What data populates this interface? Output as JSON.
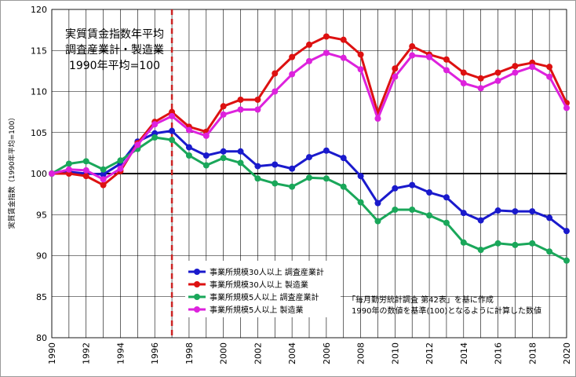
{
  "chart_data": {
    "type": "line",
    "title": [
      "実質賃金指数年平均",
      "調査産業計・製造業",
      "1990年平均=100"
    ],
    "ylabel": "実質賃金指数（1990年平均=100）",
    "xlabel": "",
    "x": [
      1990,
      1991,
      1992,
      1993,
      1994,
      1995,
      1996,
      1997,
      1998,
      1999,
      2000,
      2001,
      2002,
      2003,
      2004,
      2005,
      2006,
      2007,
      2008,
      2009,
      2010,
      2011,
      2012,
      2013,
      2014,
      2015,
      2016,
      2017,
      2018,
      2019,
      2020
    ],
    "xticks": [
      "1990",
      "1992",
      "1994",
      "1996",
      "1998",
      "2000",
      "2002",
      "2004",
      "2006",
      "2008",
      "2010",
      "2012",
      "2014",
      "2016",
      "2018",
      "2020"
    ],
    "ylim": [
      80,
      120
    ],
    "yticks": [
      "80",
      "85",
      "90",
      "95",
      "100",
      "105",
      "110",
      "115",
      "120"
    ],
    "grid": true,
    "reference_line": 100,
    "marker_year": 1997,
    "series": [
      {
        "name": "事業所規模30人以上 調査産業計",
        "color": "#1a1acc",
        "values": [
          100.0,
          100.2,
          100.0,
          99.9,
          101.2,
          103.9,
          104.9,
          105.2,
          103.2,
          102.2,
          102.7,
          102.7,
          100.9,
          101.1,
          100.6,
          102.0,
          102.8,
          101.9,
          99.7,
          96.4,
          98.2,
          98.6,
          97.7,
          97.1,
          95.2,
          94.3,
          95.5,
          95.4,
          95.4,
          94.6,
          93.0
        ]
      },
      {
        "name": "事業所規模30人以上 製造業",
        "color": "#dd1111",
        "values": [
          100.0,
          100.0,
          99.7,
          98.6,
          100.3,
          103.7,
          106.3,
          107.5,
          105.7,
          105.1,
          108.2,
          109.0,
          109.0,
          112.2,
          114.2,
          115.7,
          116.7,
          116.3,
          114.5,
          107.4,
          112.8,
          115.5,
          114.5,
          113.9,
          112.3,
          111.6,
          112.3,
          113.1,
          113.5,
          113.0,
          108.6
        ]
      },
      {
        "name": "事業所規模5人以上 調査産業計",
        "color": "#1aa75a",
        "values": [
          100.0,
          101.2,
          101.5,
          100.5,
          101.6,
          103.0,
          104.4,
          104.1,
          102.2,
          101.0,
          101.9,
          101.3,
          99.4,
          98.8,
          98.4,
          99.5,
          99.4,
          98.4,
          96.5,
          94.2,
          95.6,
          95.6,
          94.9,
          94.0,
          91.6,
          90.7,
          91.5,
          91.3,
          91.5,
          90.5,
          89.4
        ]
      },
      {
        "name": "事業所規模5人以上 製造業",
        "color": "#dd22dd",
        "values": [
          100.0,
          100.5,
          100.4,
          99.3,
          100.6,
          103.5,
          106.0,
          107.0,
          105.3,
          104.6,
          107.2,
          107.8,
          107.8,
          110.0,
          112.1,
          113.7,
          114.7,
          114.1,
          112.7,
          106.7,
          111.8,
          114.4,
          114.2,
          112.6,
          111.0,
          110.4,
          111.3,
          112.3,
          113.0,
          111.8,
          108.0
        ]
      }
    ],
    "note": [
      "「毎月勤労統計調査 第42表」を基に作成",
      "1990年の数値を基準(100)となるように計算した数値"
    ]
  }
}
